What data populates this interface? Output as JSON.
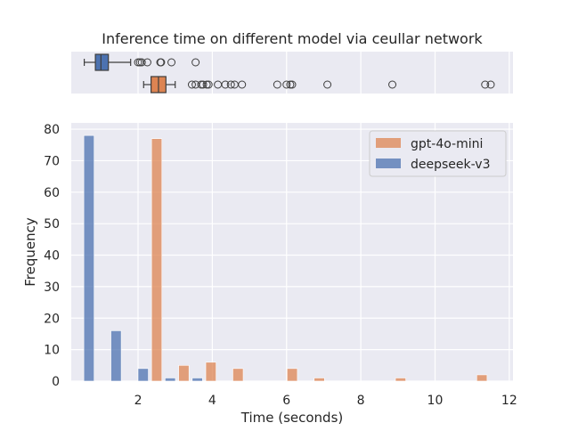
{
  "chart_data": {
    "type": "bar",
    "title": "Inference time on different model via ceullar network",
    "xlabel": "Time (seconds)",
    "ylabel": "Frequency",
    "xlim": [
      0.2,
      12.1
    ],
    "ylim": [
      0,
      82
    ],
    "x_ticks": [
      2,
      4,
      6,
      8,
      10,
      12
    ],
    "y_ticks": [
      0,
      10,
      20,
      30,
      40,
      50,
      60,
      70,
      80
    ],
    "grid": true,
    "legend_position": "top-right",
    "bin_width": 0.73,
    "bin_centers": [
      0.86,
      1.59,
      2.32,
      3.05,
      3.78,
      4.51,
      5.24,
      5.97,
      6.7,
      7.43,
      8.16,
      8.89,
      9.62,
      10.35,
      11.08,
      11.81
    ],
    "series": [
      {
        "name": "gpt-4o-mini",
        "color": "#dd8452",
        "values": [
          0,
          0,
          77,
          5,
          6,
          4,
          0,
          4,
          1,
          0,
          0,
          1,
          0,
          0,
          2,
          0
        ]
      },
      {
        "name": "deepseek-v3",
        "color": "#4c72b0",
        "values": [
          78,
          16,
          4,
          1,
          1,
          0,
          0,
          0,
          0,
          0,
          0,
          0,
          0,
          0,
          0,
          0
        ]
      }
    ],
    "boxplots": [
      {
        "name": "deepseek-v3",
        "color": "#4c72b0",
        "whisker_low": 0.55,
        "q1": 0.85,
        "median": 1.0,
        "q3": 1.2,
        "whisker_high": 1.8,
        "outliers": [
          2.0,
          2.05,
          2.1,
          2.25,
          2.6,
          2.62,
          2.9,
          3.55
        ]
      },
      {
        "name": "gpt-4o-mini",
        "color": "#dd8452",
        "whisker_low": 2.15,
        "q1": 2.35,
        "median": 2.55,
        "q3": 2.75,
        "whisker_high": 3.0,
        "outliers": [
          3.45,
          3.55,
          3.7,
          3.75,
          3.85,
          3.9,
          4.15,
          4.35,
          4.5,
          4.6,
          4.8,
          5.75,
          6.0,
          6.1,
          6.15,
          7.1,
          8.85,
          11.35,
          11.5
        ]
      }
    ]
  }
}
